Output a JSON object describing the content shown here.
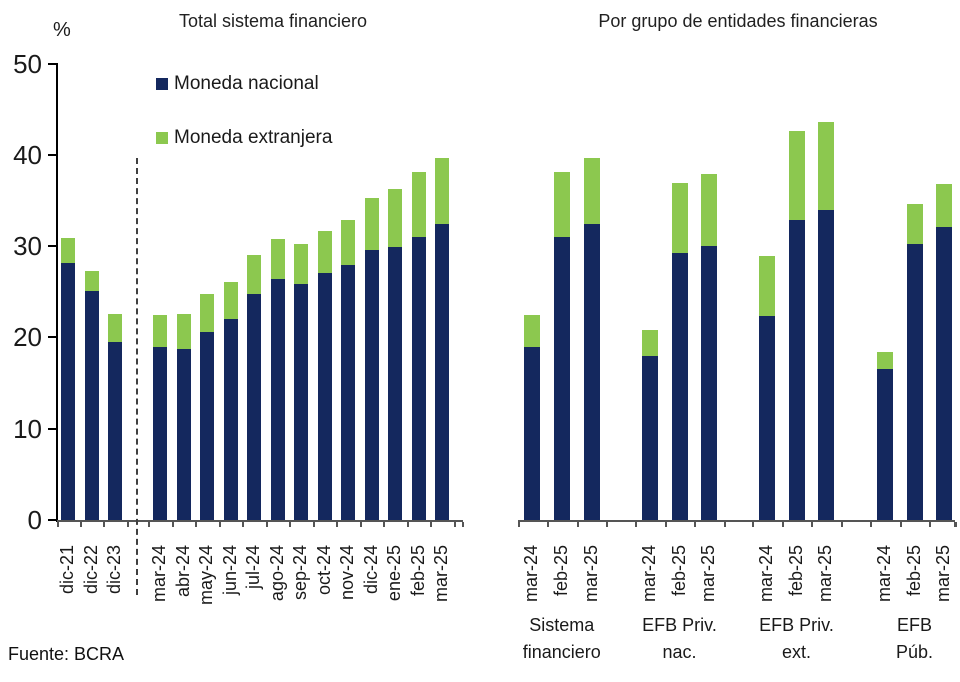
{
  "source": "Fuente: BCRA",
  "axis": {
    "unit": "%",
    "ylim": [
      0,
      50
    ],
    "yticks": [
      0,
      10,
      20,
      30,
      40,
      50
    ]
  },
  "panels": {
    "left": {
      "title": "Total sistema financiero"
    },
    "right": {
      "title": "Por grupo de entidades financieras"
    }
  },
  "legend": [
    {
      "label": "Moneda nacional",
      "color": "#14285e"
    },
    {
      "label": "Moneda extranjera",
      "color": "#8cc84f"
    }
  ],
  "chart_data": [
    {
      "type": "bar",
      "stacked": true,
      "panel": "left",
      "title": "Total sistema financiero",
      "ylabel": "%",
      "ylim": [
        0,
        50
      ],
      "grid": false,
      "legend_position": "top-left",
      "separator_after": "dic-23",
      "categories": [
        "dic-21",
        "dic-22",
        "dic-23",
        "mar-24",
        "abr-24",
        "may-24",
        "jun-24",
        "jul-24",
        "ago-24",
        "sep-24",
        "oct-24",
        "nov-24",
        "dic-24",
        "ene-25",
        "feb-25",
        "mar-25"
      ],
      "series": [
        {
          "name": "Moneda nacional",
          "color": "#14285e",
          "values": [
            28.1,
            25.1,
            19.5,
            18.9,
            18.7,
            20.6,
            22.0,
            24.8,
            26.4,
            25.9,
            27.1,
            27.9,
            29.6,
            29.9,
            31.0,
            32.4
          ]
        },
        {
          "name": "Moneda extranjera",
          "color": "#8cc84f",
          "values": [
            2.8,
            2.2,
            3.1,
            3.5,
            3.9,
            4.2,
            4.1,
            4.2,
            4.4,
            4.3,
            4.6,
            5.0,
            5.7,
            6.4,
            7.1,
            7.2
          ]
        }
      ]
    },
    {
      "type": "bar",
      "stacked": true,
      "panel": "right",
      "title": "Por grupo de entidades financieras",
      "ylim": [
        0,
        50
      ],
      "grid": false,
      "series_names": [
        "Moneda nacional",
        "Moneda extranjera"
      ],
      "groups": [
        {
          "label": "Sistema financiero",
          "label_lines": [
            "Sistema",
            "financiero"
          ],
          "bars": [
            {
              "category": "mar-24",
              "moneda_nacional": 18.9,
              "moneda_extranjera": 3.5
            },
            {
              "category": "feb-25",
              "moneda_nacional": 31.0,
              "moneda_extranjera": 7.1
            },
            {
              "category": "mar-25",
              "moneda_nacional": 32.4,
              "moneda_extranjera": 7.2
            }
          ]
        },
        {
          "label": "EFB Priv. nac.",
          "label_lines": [
            "EFB Priv.",
            "nac."
          ],
          "bars": [
            {
              "category": "mar-24",
              "moneda_nacional": 18.0,
              "moneda_extranjera": 2.8
            },
            {
              "category": "feb-25",
              "moneda_nacional": 29.2,
              "moneda_extranjera": 7.7
            },
            {
              "category": "mar-25",
              "moneda_nacional": 30.0,
              "moneda_extranjera": 7.9
            }
          ]
        },
        {
          "label": "EFB Priv. ext.",
          "label_lines": [
            "EFB Priv.",
            "ext."
          ],
          "bars": [
            {
              "category": "mar-24",
              "moneda_nacional": 22.3,
              "moneda_extranjera": 6.6
            },
            {
              "category": "feb-25",
              "moneda_nacional": 32.9,
              "moneda_extranjera": 9.7
            },
            {
              "category": "mar-25",
              "moneda_nacional": 33.9,
              "moneda_extranjera": 9.7
            }
          ]
        },
        {
          "label": "EFB Púb.",
          "label_lines": [
            "EFB",
            "Púb."
          ],
          "bars": [
            {
              "category": "mar-24",
              "moneda_nacional": 16.5,
              "moneda_extranjera": 1.9
            },
            {
              "category": "feb-25",
              "moneda_nacional": 30.2,
              "moneda_extranjera": 4.4
            },
            {
              "category": "mar-25",
              "moneda_nacional": 32.1,
              "moneda_extranjera": 4.7
            }
          ]
        }
      ]
    }
  ]
}
